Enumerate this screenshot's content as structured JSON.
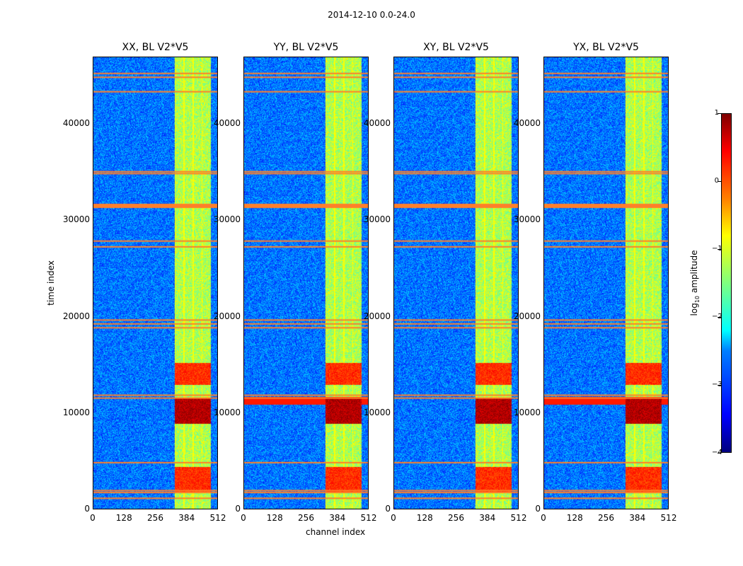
{
  "chart_data": {
    "type": "heatmap",
    "suptitle": "2014-12-10 0.0-24.0",
    "panels": [
      {
        "title": "XX, BL V2*V5"
      },
      {
        "title": "YY, BL V2*V5"
      },
      {
        "title": "XY, BL V2*V5"
      },
      {
        "title": "YX, BL V2*V5"
      }
    ],
    "xlabel": "channel index",
    "ylabel": "time index",
    "xlim": [
      0,
      512
    ],
    "ylim": [
      0,
      47000
    ],
    "xticks": [
      "0",
      "128",
      "256",
      "384",
      "512"
    ],
    "yticks": [
      "0",
      "10000",
      "20000",
      "30000",
      "40000"
    ],
    "colorbar": {
      "label_prefix": "log",
      "label_sub": "10",
      "label_suffix": " amplitude",
      "range": [
        -4,
        1
      ],
      "ticks": [
        "1",
        "0",
        "−1",
        "−2",
        "−3",
        "−4"
      ]
    },
    "features": {
      "bright_channel_band": [
        330,
        480
      ],
      "saturated_time_ranges": [
        [
          9000,
          11700
        ],
        [
          13000,
          15300
        ],
        [
          1800,
          4500
        ]
      ],
      "flagged_time_rows": [
        1300,
        1900,
        2100,
        5000,
        11700,
        12000,
        19000,
        19400,
        19800,
        27400,
        28000,
        31800,
        35000,
        35200,
        43500,
        45000,
        45400
      ]
    }
  }
}
